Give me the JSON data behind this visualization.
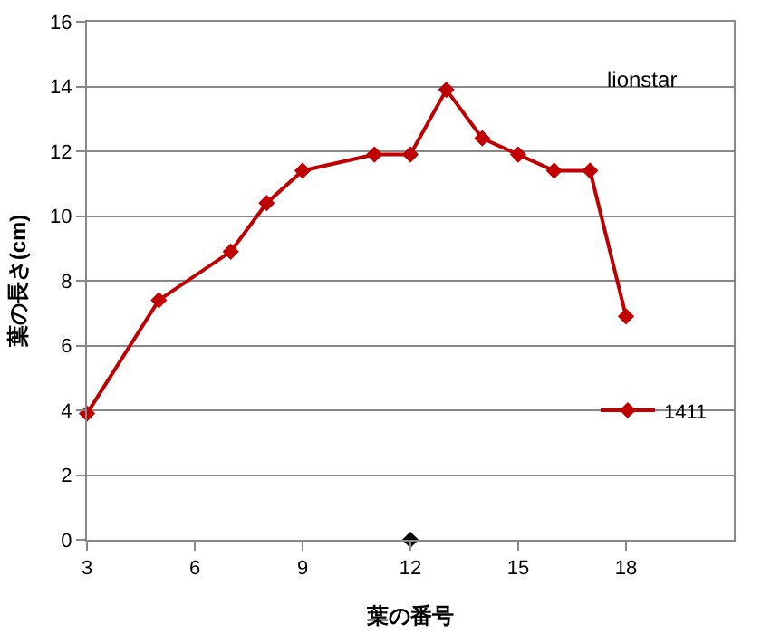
{
  "chart_data": {
    "type": "line",
    "xlabel": "葉の番号",
    "ylabel": "葉の長さ(cm)",
    "annotations": [
      "lionstar"
    ],
    "x": [
      3,
      5,
      7,
      8,
      9,
      11,
      12,
      13,
      14,
      15,
      16,
      17,
      18
    ],
    "series": [
      {
        "name": "1411",
        "color": "#c00000",
        "values": [
          3.9,
          7.4,
          8.9,
          10.4,
          11.4,
          11.9,
          11.9,
          13.9,
          12.4,
          11.9,
          11.4,
          11.4,
          6.9
        ]
      },
      {
        "type": "scatter",
        "color": "#000000",
        "x": [
          12
        ],
        "values": [
          0
        ]
      }
    ],
    "xlim": [
      3,
      21
    ],
    "xticks": [
      3,
      6,
      9,
      12,
      15,
      18
    ],
    "ylim": [
      0,
      16
    ],
    "yticks": [
      0,
      2,
      4,
      6,
      8,
      10,
      12,
      14,
      16
    ],
    "grid": "y",
    "legend": "right",
    "marker": "diamond",
    "line_style": "solid"
  }
}
